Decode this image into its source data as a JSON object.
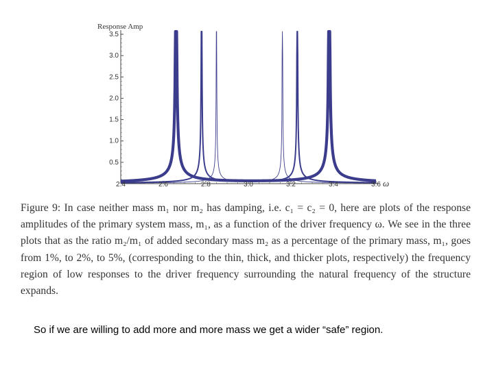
{
  "chart_data": {
    "type": "line",
    "title": "",
    "ylabel": "Response Amp",
    "xlabel": "ω",
    "xlim": [
      2.4,
      3.6
    ],
    "ylim": [
      0,
      3.5
    ],
    "x_ticks": [
      2.4,
      2.6,
      2.8,
      3.0,
      3.2,
      3.4,
      3.6
    ],
    "y_ticks": [
      0.5,
      1.0,
      1.5,
      2.0,
      2.5,
      3.0,
      3.5
    ],
    "grid": false,
    "legend": "none",
    "color": "#3b3d8c",
    "series": [
      {
        "weight": "thin",
        "mass_ratio_percent": 1,
        "resonances": [
          2.85,
          3.16
        ]
      },
      {
        "weight": "thick",
        "mass_ratio_percent": 2,
        "resonances": [
          2.78,
          3.23
        ]
      },
      {
        "weight": "thicker",
        "mass_ratio_percent": 5,
        "resonances": [
          2.66,
          3.38
        ]
      }
    ]
  },
  "caption": {
    "text": "Figure 9: In case neither mass m₁ nor m₂ has damping, i.e. c₁ = c₂ = 0, here are plots of the response amplitudes of the primary system mass, m₁, as a function of the driver frequency ω. We see in the three plots that as the ratio m₂/m₁ of added secondary mass m₂ as a percentage of the primary mass, m₁, goes from 1%, to 2%, to 5%, (corresponding to the thin, thick, and thicker plots, respectively) the frequency region of low responses to the driver frequency surrounding the natural frequency of the structure expands."
  },
  "summary": "So  if we are willing to add more and more mass we get a wider “safe” region."
}
